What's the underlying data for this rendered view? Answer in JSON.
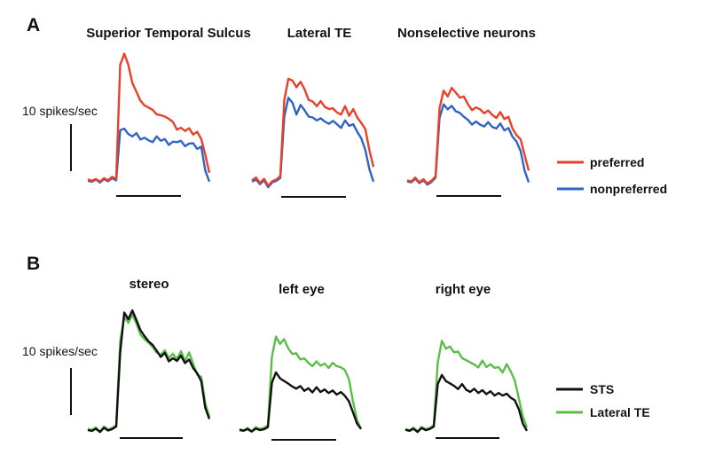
{
  "panel_a": {
    "letter": "A",
    "scale_label": "10 spikes/sec",
    "legend": [
      {
        "label": "preferred",
        "color": "#e8402a"
      },
      {
        "label": "nonpreferred",
        "color": "#2f63c4"
      }
    ]
  },
  "panel_b": {
    "letter": "B",
    "scale_label": "10 spikes/sec",
    "legend": [
      {
        "label": "STS",
        "color": "#111111"
      },
      {
        "label": "Lateral TE",
        "color": "#5cbd4a"
      }
    ]
  },
  "chart_data": [
    {
      "type": "line",
      "title": "Superior Temporal Sulcus",
      "panel": "A",
      "ylim": [
        0,
        30
      ],
      "series": [
        {
          "name": "preferred",
          "color": "#e8402a",
          "values": [
            1.5,
            1.2,
            1.6,
            1.0,
            1.8,
            1.3,
            2.1,
            1.6,
            27,
            29.5,
            27,
            23,
            21,
            19,
            18,
            17.5,
            17,
            16,
            15.8,
            15.5,
            15,
            14.3,
            12.6,
            13,
            12.3,
            12.9,
            11.5,
            12.1,
            10.5,
            7,
            3
          ]
        },
        {
          "name": "nonpreferred",
          "color": "#2f63c4",
          "values": [
            1.2,
            1.0,
            1.5,
            0.8,
            1.6,
            1.1,
            1.8,
            1.3,
            12.5,
            12.8,
            11.6,
            11.1,
            11.8,
            10.4,
            10.8,
            10.2,
            9.8,
            11.1,
            10.1,
            10.5,
            9.2,
            9.9,
            9.8,
            10.1,
            8.9,
            9.5,
            9.6,
            8.3,
            8.8,
            3.5,
            1
          ]
        }
      ]
    },
    {
      "type": "line",
      "title": "Lateral TE",
      "panel": "A",
      "ylim": [
        0,
        30
      ],
      "series": [
        {
          "name": "preferred",
          "color": "#e8402a",
          "values": [
            1.8,
            2.5,
            1.2,
            2.2,
            0.5,
            1.6,
            2.0,
            2.8,
            21,
            26,
            25.6,
            24,
            25.3,
            23.5,
            21,
            20.6,
            19.5,
            20.7,
            19.3,
            18.8,
            19,
            18,
            17.5,
            19.5,
            17.2,
            18.8,
            16.8,
            15.5,
            14,
            9,
            5
          ]
        },
        {
          "name": "nonpreferred",
          "color": "#2f63c4",
          "values": [
            1.5,
            2.0,
            0.9,
            1.8,
            0.2,
            1.3,
            1.7,
            2.4,
            17,
            21.5,
            20.3,
            17.5,
            19.8,
            18.5,
            17,
            16.8,
            16.1,
            16.6,
            15.8,
            15.3,
            16.0,
            15.2,
            14.3,
            16.1,
            14.8,
            15.2,
            13.4,
            11.8,
            9,
            4.5,
            1.5
          ]
        }
      ]
    },
    {
      "type": "line",
      "title": "Nonselective neurons",
      "panel": "A",
      "ylim": [
        0,
        30
      ],
      "series": [
        {
          "name": "preferred",
          "color": "#e8402a",
          "values": [
            1.5,
            1.2,
            2.2,
            1.0,
            1.8,
            0.7,
            1.4,
            2.5,
            20,
            24.5,
            23,
            25.2,
            24,
            22.7,
            23,
            21,
            19.5,
            20.2,
            19.7,
            18.7,
            19.4,
            18.3,
            17.5,
            19,
            17.2,
            17.8,
            14.8,
            13.1,
            12,
            8,
            4
          ]
        },
        {
          "name": "nonpreferred",
          "color": "#2f63c4",
          "values": [
            1.2,
            1.0,
            1.9,
            0.8,
            1.5,
            0.4,
            1.1,
            2.2,
            17.5,
            21,
            19.7,
            20.6,
            19.2,
            18.8,
            17.8,
            17,
            15.8,
            16.6,
            15.8,
            15.3,
            16.4,
            15.2,
            14.8,
            16.1,
            14.3,
            14.9,
            12.7,
            11.4,
            9,
            4,
            1
          ]
        }
      ]
    },
    {
      "type": "line",
      "title": "stereo",
      "panel": "B",
      "ylim": [
        0,
        30
      ],
      "series": [
        {
          "name": "STS",
          "color": "#111111",
          "values": [
            1.0,
            0.8,
            1.3,
            0.6,
            1.5,
            0.9,
            1.2,
            1.8,
            18.5,
            27.5,
            26,
            28,
            25.8,
            23.5,
            22.2,
            21,
            20.2,
            18.9,
            17.5,
            18.4,
            16.5,
            17.2,
            16.6,
            17.8,
            16.1,
            16.9,
            15,
            13.8,
            12,
            6,
            3.5
          ]
        },
        {
          "name": "Lateral TE",
          "color": "#5cbd4a",
          "values": [
            1.3,
            1.0,
            1.6,
            0.5,
            1.8,
            1.1,
            1.5,
            2.0,
            21,
            26.5,
            25.2,
            27,
            25,
            22.5,
            21.5,
            20.7,
            19.7,
            18.5,
            18.0,
            19,
            17.2,
            18.2,
            17,
            18.8,
            16.5,
            18.5,
            16,
            13.5,
            13,
            7,
            4
          ]
        }
      ]
    },
    {
      "type": "line",
      "title": "left eye",
      "panel": "B",
      "ylim": [
        0,
        30
      ],
      "series": [
        {
          "name": "STS",
          "color": "#111111",
          "values": [
            1.2,
            1.0,
            1.5,
            0.8,
            1.6,
            1.2,
            1.4,
            2.0,
            14,
            16.8,
            15.2,
            14.5,
            13.8,
            13,
            12.4,
            13.1,
            11.8,
            12.5,
            11.4,
            12.8,
            11.5,
            12.2,
            11.2,
            11.9,
            10.8,
            11.5,
            10.5,
            9,
            6,
            3,
            1.5
          ]
        },
        {
          "name": "Lateral TE",
          "color": "#5cbd4a",
          "values": [
            1.5,
            1.1,
            1.8,
            0.9,
            2.0,
            1.5,
            1.8,
            2.5,
            21,
            26.5,
            24.5,
            25.8,
            23.4,
            21.8,
            22,
            20.3,
            20.6,
            19.4,
            18.5,
            19.8,
            18.6,
            19.2,
            18,
            19.4,
            18.5,
            18.2,
            17.5,
            15,
            9,
            4,
            1.5
          ]
        }
      ]
    },
    {
      "type": "line",
      "title": "right eye",
      "panel": "B",
      "ylim": [
        0,
        30
      ],
      "series": [
        {
          "name": "STS",
          "color": "#111111",
          "values": [
            1.3,
            1.0,
            1.6,
            0.7,
            1.8,
            1.2,
            1.5,
            2.2,
            14,
            16.5,
            14.8,
            14.2,
            13.5,
            12.6,
            14,
            12.4,
            11.8,
            12.7,
            11.5,
            12.3,
            11.2,
            12,
            10.8,
            11.5,
            10.8,
            11.3,
            10.2,
            9.5,
            7,
            3,
            1
          ]
        },
        {
          "name": "Lateral TE",
          "color": "#5cbd4a",
          "values": [
            1.5,
            1.2,
            1.9,
            0.9,
            2.1,
            1.5,
            1.8,
            2.6,
            20,
            26,
            23.8,
            24.4,
            22.8,
            23,
            21.2,
            20.6,
            20,
            19.4,
            18.6,
            20.5,
            18.7,
            19.5,
            18.5,
            18.7,
            17.2,
            19.5,
            17.5,
            15,
            10,
            5,
            2
          ]
        }
      ]
    }
  ]
}
